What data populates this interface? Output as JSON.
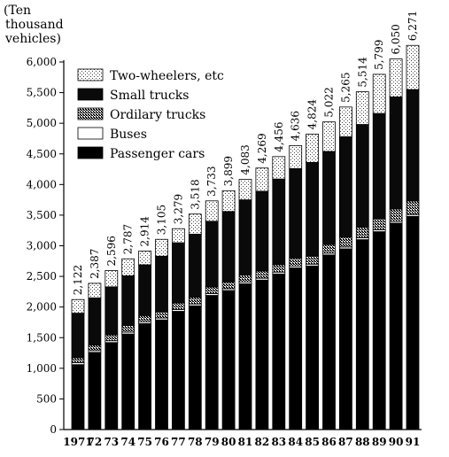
{
  "chart_data": {
    "type": "bar",
    "stacked": true,
    "unit_label": [
      "(Ten",
      "thousand",
      "vehicles)"
    ],
    "categories": [
      "1971",
      "72",
      "73",
      "74",
      "75",
      "76",
      "77",
      "78",
      "79",
      "80",
      "81",
      "82",
      "83",
      "84",
      "85",
      "86",
      "87",
      "88",
      "89",
      "90",
      "91"
    ],
    "ylim": [
      0,
      6000
    ],
    "yticks": [
      0,
      500,
      1000,
      1500,
      2000,
      2500,
      3000,
      3500,
      4000,
      4500,
      5000,
      5500,
      6000
    ],
    "ytick_labels": [
      "0",
      "500",
      "1,000",
      "1,500",
      "2,000",
      "2,500",
      "3,000",
      "3,500",
      "4,000",
      "4,500",
      "5,000",
      "5,500",
      "6,000"
    ],
    "totals": [
      2122,
      2387,
      2596,
      2787,
      2914,
      3105,
      3279,
      3518,
      3733,
      3899,
      4083,
      4269,
      4456,
      4636,
      4824,
      5022,
      5265,
      5514,
      5799,
      6050,
      6271
    ],
    "total_labels": [
      "2,122",
      "2,387",
      "2,596",
      "2,787",
      "2,914",
      "3,105",
      "3,279",
      "3,518",
      "3,733",
      "3,899",
      "4,083",
      "4,269",
      "4,456",
      "4,636",
      "4,824",
      "5,022",
      "5,265",
      "5,514",
      "5,799",
      "6,050",
      "6,271"
    ],
    "series": [
      {
        "name": "Passenger cars",
        "fill": "#000000",
        "values": [
          1060,
          1260,
          1420,
          1560,
          1730,
          1790,
          1930,
          2020,
          2190,
          2270,
          2380,
          2440,
          2540,
          2640,
          2670,
          2850,
          2950,
          3100,
          3230,
          3370,
          3480
        ]
      },
      {
        "name": "Buses",
        "fill": "#ffffff",
        "values": [
          30,
          30,
          30,
          30,
          30,
          30,
          30,
          30,
          30,
          30,
          30,
          30,
          30,
          30,
          30,
          30,
          30,
          30,
          30,
          30,
          30
        ]
      },
      {
        "name": "Ordilary trucks",
        "fill": "#8a8a8a",
        "values": [
          80,
          90,
          100,
          110,
          100,
          100,
          110,
          110,
          110,
          110,
          110,
          120,
          120,
          130,
          130,
          140,
          160,
          170,
          180,
          200,
          220
        ]
      },
      {
        "name": "Small trucks",
        "fill": "#0a0a0a",
        "values": [
          730,
          770,
          780,
          810,
          830,
          910,
          980,
          1030,
          1070,
          1150,
          1230,
          1300,
          1400,
          1460,
          1530,
          1520,
          1640,
          1680,
          1720,
          1830,
          1820
        ]
      },
      {
        "name": "Two-wheelers, etc",
        "fill": "#d4d4d4",
        "values": [
          222,
          237,
          266,
          277,
          224,
          275,
          229,
          328,
          333,
          339,
          333,
          379,
          366,
          376,
          464,
          482,
          485,
          534,
          639,
          620,
          721
        ]
      }
    ],
    "legend": {
      "placement": "upper-left",
      "order": [
        "Two-wheelers, etc",
        "Small trucks",
        "Ordilary trucks",
        "Buses",
        "Passenger cars"
      ]
    }
  }
}
